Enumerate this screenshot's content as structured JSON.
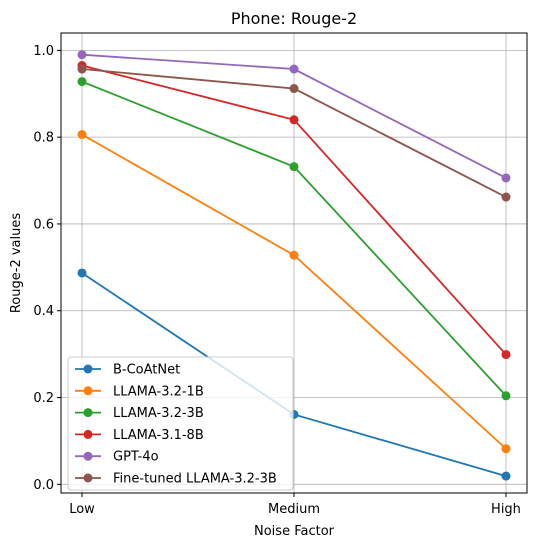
{
  "chart_data": {
    "type": "line",
    "title": "Phone: Rouge-2",
    "xlabel": "Noise Factor",
    "ylabel": "Rouge-2 values",
    "categories": [
      "Low",
      "Medium",
      "High"
    ],
    "ylim": [
      -0.02,
      1.04
    ],
    "yticks": [
      "0.0",
      "0.2",
      "0.4",
      "0.6",
      "0.8",
      "1.0"
    ],
    "grid": true,
    "legend_position": "lower-left",
    "series": [
      {
        "name": "B-CoAtNet",
        "color": "#1f77b4",
        "values": [
          0.487,
          0.161,
          0.019
        ]
      },
      {
        "name": "LLAMA-3.2-1B",
        "color": "#ff7f0e",
        "values": [
          0.806,
          0.528,
          0.082
        ]
      },
      {
        "name": "LLAMA-3.2-3B",
        "color": "#2ca02c",
        "values": [
          0.928,
          0.732,
          0.204
        ]
      },
      {
        "name": "LLAMA-3.1-8B",
        "color": "#d62728",
        "values": [
          0.965,
          0.84,
          0.299
        ]
      },
      {
        "name": "GPT-4o",
        "color": "#9467bd",
        "values": [
          0.99,
          0.957,
          0.706
        ]
      },
      {
        "name": "Fine-tuned LLAMA-3.2-3B",
        "color": "#8c564b",
        "values": [
          0.957,
          0.912,
          0.662
        ]
      }
    ]
  }
}
